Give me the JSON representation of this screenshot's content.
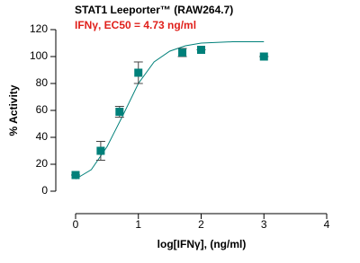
{
  "chart_data": {
    "type": "scatter",
    "title": "STAT1 Leeporter™ (RAW264.7)",
    "subtitle": "IFNγ, EC50 = 4.73 ng/ml",
    "x_label": "log[IFNγ], (ng/ml)",
    "y_label": "% Activity",
    "xlim": [
      0,
      4
    ],
    "xticks": [
      0,
      1,
      2,
      3,
      4
    ],
    "ylim": [
      0,
      120
    ],
    "yticks": [
      0,
      20,
      40,
      60,
      80,
      100,
      120
    ],
    "points": {
      "color": "#00807a",
      "x": [
        0,
        0.4,
        0.7,
        1,
        1.7,
        2,
        3
      ],
      "values": [
        12,
        30,
        59,
        88,
        103,
        105,
        100
      ],
      "errors": [
        0,
        7,
        4,
        8,
        3,
        0,
        0
      ]
    },
    "curve": {
      "color": "#00807a",
      "x": [
        0,
        0.25,
        0.5,
        0.75,
        1,
        1.25,
        1.5,
        1.75,
        2,
        2.5,
        3
      ],
      "values": [
        9,
        16,
        33,
        56,
        80,
        96,
        104,
        108,
        110,
        111,
        111
      ]
    }
  }
}
